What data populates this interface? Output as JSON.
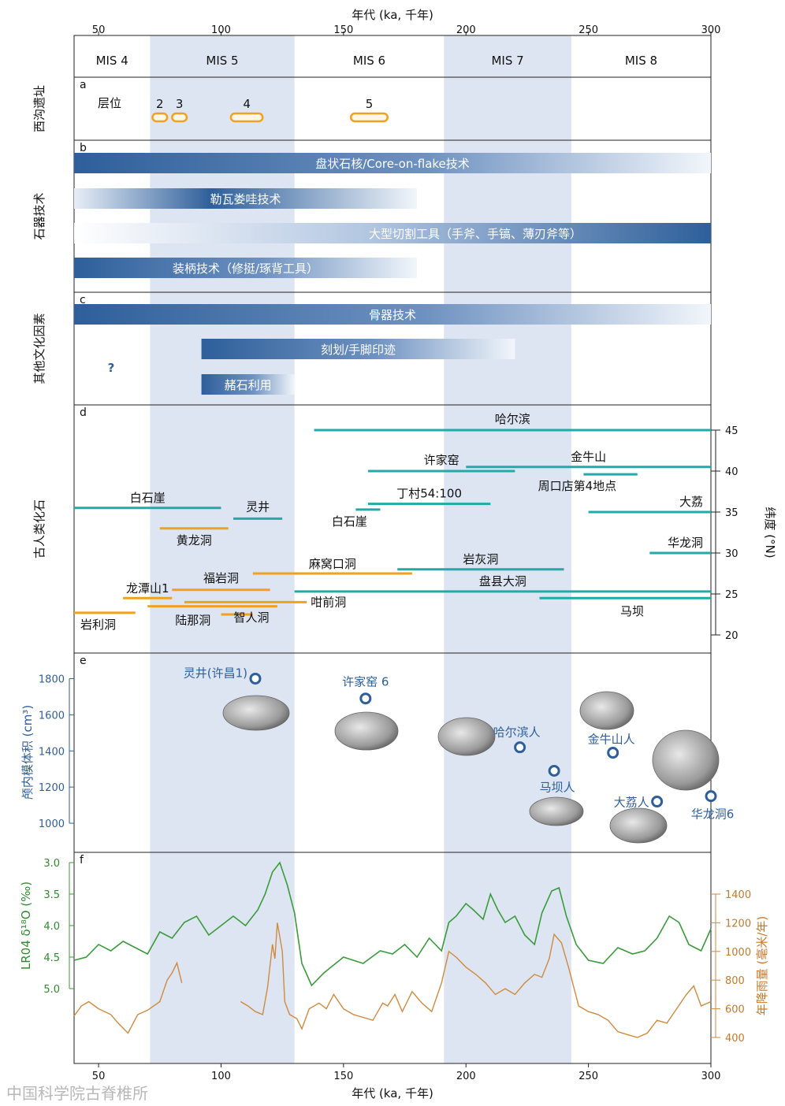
{
  "chart_data": {
    "type": "composite-timeline",
    "xlabel": "年代 (ka, 千年)",
    "x_range": [
      40,
      300
    ],
    "x_ticks": [
      50,
      100,
      150,
      200,
      250,
      300
    ],
    "mis": [
      {
        "label": "MIS 4",
        "start": 40,
        "end": 71,
        "shaded": false
      },
      {
        "label": "MIS 5",
        "start": 71,
        "end": 130,
        "shaded": true
      },
      {
        "label": "MIS 6",
        "start": 130,
        "end": 191,
        "shaded": false
      },
      {
        "label": "MIS 7",
        "start": 191,
        "end": 243,
        "shaded": true
      },
      {
        "label": "MIS 8",
        "start": 243,
        "end": 300,
        "shaded": false
      }
    ],
    "panels": {
      "a": {
        "letter": "a",
        "side_title": "西沟遗址",
        "layer_title": "层位",
        "layers": [
          {
            "label": "2",
            "start": 72,
            "end": 78
          },
          {
            "label": "3",
            "start": 80,
            "end": 86
          },
          {
            "label": "4",
            "start": 104,
            "end": 117
          },
          {
            "label": "5",
            "start": 153,
            "end": 168
          }
        ]
      },
      "b": {
        "letter": "b",
        "side_title": "石器技术",
        "bars": [
          {
            "label": "盘状石核/Core-on-flake技术",
            "start": 40,
            "end": 300,
            "fade": "right"
          },
          {
            "label": "勒瓦娄哇技术",
            "start": 40,
            "end": 180,
            "fade": "both"
          },
          {
            "label": "大型切割工具（手斧、手镐、薄刃斧等）",
            "start": 40,
            "end": 300,
            "fade": "left"
          },
          {
            "label": "装柄技术（修挺/琢背工具）",
            "start": 40,
            "end": 180,
            "fade": "right"
          }
        ]
      },
      "c": {
        "letter": "c",
        "side_title": "其他文化因素",
        "question": "?",
        "bars": [
          {
            "label": "骨器技术",
            "start": 40,
            "end": 300,
            "fade": "right"
          },
          {
            "label": "刻划/手脚印迹",
            "start": 92,
            "end": 220,
            "fade": "right"
          },
          {
            "label": "赭石利用",
            "start": 92,
            "end": 130,
            "fade": "right"
          }
        ]
      },
      "d": {
        "letter": "d",
        "side_title": "古人类化石",
        "ylabel": "纬度 (°N)",
        "y_range": [
          20,
          45
        ],
        "y_ticks": [
          20,
          25,
          30,
          35,
          40,
          45
        ],
        "sites": [
          {
            "name": "哈尔滨",
            "start": 138,
            "end": 300,
            "lat": 45,
            "color": "teal"
          },
          {
            "name": "金牛山",
            "start": 200,
            "end": 300,
            "lat": 40.5,
            "color": "teal"
          },
          {
            "name": "许家窑",
            "start": 160,
            "end": 220,
            "lat": 40,
            "color": "teal"
          },
          {
            "name": "周口店第4地点",
            "start": 248,
            "end": 270,
            "lat": 39.6,
            "color": "teal"
          },
          {
            "name": "丁村54:100",
            "start": 160,
            "end": 210,
            "lat": 36,
            "color": "teal"
          },
          {
            "name": "白石崖",
            "start": 155,
            "end": 165,
            "lat": 35.3,
            "color": "teal"
          },
          {
            "name": "白石崖",
            "start": 40,
            "end": 100,
            "lat": 35.5,
            "color": "teal"
          },
          {
            "name": "灵井",
            "start": 105,
            "end": 125,
            "lat": 34.2,
            "color": "teal"
          },
          {
            "name": "大荔",
            "start": 250,
            "end": 300,
            "lat": 35,
            "color": "teal"
          },
          {
            "name": "黄龙洞",
            "start": 75,
            "end": 103,
            "lat": 33,
            "color": "orange"
          },
          {
            "name": "华龙洞",
            "start": 275,
            "end": 300,
            "lat": 30,
            "color": "teal"
          },
          {
            "name": "麻窝口洞",
            "start": 113,
            "end": 178,
            "lat": 27.5,
            "color": "orange"
          },
          {
            "name": "岩灰洞",
            "start": 172,
            "end": 240,
            "lat": 28,
            "color": "teal"
          },
          {
            "name": "盘县大洞",
            "start": 130,
            "end": 300,
            "lat": 25.3,
            "color": "teal"
          },
          {
            "name": "福岩洞",
            "start": 80,
            "end": 120,
            "lat": 25.5,
            "color": "orange"
          },
          {
            "name": "龙潭山1",
            "start": 60,
            "end": 80,
            "lat": 24.5,
            "color": "orange"
          },
          {
            "name": "马坝",
            "start": 230,
            "end": 300,
            "lat": 24.5,
            "color": "teal"
          },
          {
            "name": "咁前洞",
            "start": 85,
            "end": 135,
            "lat": 24,
            "color": "orange"
          },
          {
            "name": "陆那洞",
            "start": 70,
            "end": 123,
            "lat": 23.5,
            "color": "orange"
          },
          {
            "name": "智人洞",
            "start": 100,
            "end": 113,
            "lat": 22.5,
            "color": "orange"
          },
          {
            "name": "岩利洞",
            "start": 40,
            "end": 65,
            "lat": 22.7,
            "color": "orange"
          }
        ]
      },
      "e": {
        "letter": "e",
        "ylabel": "颅内模体积 (cm³)",
        "y_range": [
          900,
          1850
        ],
        "y_ticks": [
          1000,
          1200,
          1400,
          1600,
          1800
        ],
        "points": [
          {
            "name": "灵井(许昌1)",
            "x": 114,
            "y": 1800
          },
          {
            "name": "许家窑 6",
            "x": 159,
            "y": 1690
          },
          {
            "name": "哈尔滨人",
            "x": 222,
            "y": 1420
          },
          {
            "name": "马坝人",
            "x": 236,
            "y": 1290
          },
          {
            "name": "金牛山人",
            "x": 260,
            "y": 1390
          },
          {
            "name": "大荔人",
            "x": 278,
            "y": 1120
          },
          {
            "name": "华龙洞6",
            "x": 300,
            "y": 1150
          }
        ]
      },
      "f": {
        "letter": "f",
        "left_label": "LR04 δ¹⁸O (‰)",
        "left_range": [
          3.0,
          5.0
        ],
        "left_ticks": [
          3.0,
          3.5,
          4.0,
          4.5,
          5.0
        ],
        "right_label": "年降雨量 (毫米/年)",
        "right_range": [
          400,
          1400
        ],
        "right_ticks": [
          400,
          600,
          800,
          1000,
          1200,
          1400
        ],
        "lr04": [
          [
            40,
            4.55
          ],
          [
            45,
            4.5
          ],
          [
            50,
            4.3
          ],
          [
            55,
            4.4
          ],
          [
            60,
            4.25
          ],
          [
            65,
            4.35
          ],
          [
            70,
            4.45
          ],
          [
            75,
            4.1
          ],
          [
            80,
            4.2
          ],
          [
            85,
            3.95
          ],
          [
            90,
            3.85
          ],
          [
            95,
            4.15
          ],
          [
            100,
            4.0
          ],
          [
            105,
            3.85
          ],
          [
            110,
            4.0
          ],
          [
            115,
            3.75
          ],
          [
            118,
            3.5
          ],
          [
            121,
            3.15
          ],
          [
            124,
            3.0
          ],
          [
            127,
            3.35
          ],
          [
            130,
            3.8
          ],
          [
            133,
            4.6
          ],
          [
            137,
            4.95
          ],
          [
            142,
            4.75
          ],
          [
            150,
            4.5
          ],
          [
            158,
            4.6
          ],
          [
            165,
            4.4
          ],
          [
            170,
            4.45
          ],
          [
            175,
            4.3
          ],
          [
            180,
            4.5
          ],
          [
            185,
            4.2
          ],
          [
            190,
            4.4
          ],
          [
            193,
            3.95
          ],
          [
            196,
            3.85
          ],
          [
            200,
            3.65
          ],
          [
            203,
            3.75
          ],
          [
            207,
            3.9
          ],
          [
            210,
            3.5
          ],
          [
            213,
            3.75
          ],
          [
            216,
            3.95
          ],
          [
            220,
            3.85
          ],
          [
            224,
            4.15
          ],
          [
            228,
            4.3
          ],
          [
            231,
            3.8
          ],
          [
            235,
            3.45
          ],
          [
            238,
            3.4
          ],
          [
            241,
            3.85
          ],
          [
            245,
            4.3
          ],
          [
            250,
            4.55
          ],
          [
            256,
            4.6
          ],
          [
            262,
            4.35
          ],
          [
            268,
            4.45
          ],
          [
            273,
            4.4
          ],
          [
            278,
            4.2
          ],
          [
            283,
            3.85
          ],
          [
            287,
            3.95
          ],
          [
            291,
            4.3
          ],
          [
            296,
            4.4
          ],
          [
            300,
            4.05
          ]
        ],
        "rain_1": [
          [
            40,
            550
          ],
          [
            43,
            620
          ],
          [
            46,
            650
          ],
          [
            50,
            600
          ],
          [
            55,
            560
          ],
          [
            58,
            500
          ],
          [
            62,
            430
          ],
          [
            66,
            560
          ],
          [
            70,
            590
          ],
          [
            75,
            650
          ],
          [
            78,
            800
          ],
          [
            80,
            850
          ],
          [
            82,
            920
          ],
          [
            84,
            780
          ]
        ],
        "rain_2": [
          [
            108,
            650
          ],
          [
            111,
            620
          ],
          [
            114,
            580
          ],
          [
            117,
            560
          ],
          [
            119,
            750
          ],
          [
            121,
            1050
          ],
          [
            122,
            950
          ],
          [
            123,
            1200
          ],
          [
            125,
            1000
          ],
          [
            126,
            650
          ],
          [
            128,
            560
          ],
          [
            131,
            530
          ],
          [
            133,
            460
          ],
          [
            136,
            600
          ],
          [
            140,
            640
          ],
          [
            143,
            600
          ],
          [
            146,
            700
          ],
          [
            150,
            600
          ],
          [
            154,
            560
          ],
          [
            158,
            540
          ],
          [
            162,
            520
          ],
          [
            166,
            640
          ],
          [
            168,
            620
          ],
          [
            171,
            700
          ],
          [
            174,
            580
          ],
          [
            178,
            720
          ],
          [
            182,
            640
          ],
          [
            186,
            580
          ],
          [
            190,
            780
          ],
          [
            193,
            1000
          ],
          [
            196,
            960
          ],
          [
            200,
            890
          ],
          [
            204,
            840
          ],
          [
            208,
            780
          ],
          [
            212,
            700
          ],
          [
            216,
            740
          ],
          [
            220,
            700
          ],
          [
            224,
            780
          ],
          [
            228,
            840
          ],
          [
            231,
            820
          ],
          [
            234,
            950
          ],
          [
            236,
            1120
          ],
          [
            239,
            1060
          ],
          [
            242,
            880
          ],
          [
            246,
            620
          ],
          [
            250,
            580
          ],
          [
            254,
            560
          ],
          [
            258,
            520
          ],
          [
            262,
            440
          ],
          [
            266,
            420
          ],
          [
            270,
            400
          ],
          [
            274,
            430
          ],
          [
            278,
            520
          ],
          [
            282,
            500
          ],
          [
            286,
            600
          ],
          [
            290,
            700
          ],
          [
            293,
            760
          ],
          [
            296,
            620
          ],
          [
            300,
            650
          ]
        ]
      }
    }
  },
  "watermark": "中国科学院古脊椎所",
  "colors": {
    "teal": "#20aaa8",
    "orange": "#f0a21f",
    "blue": "#2e5f9a",
    "shade": "#dde5f2",
    "green": "#3a9b3a",
    "rain": "#d08a3e"
  }
}
